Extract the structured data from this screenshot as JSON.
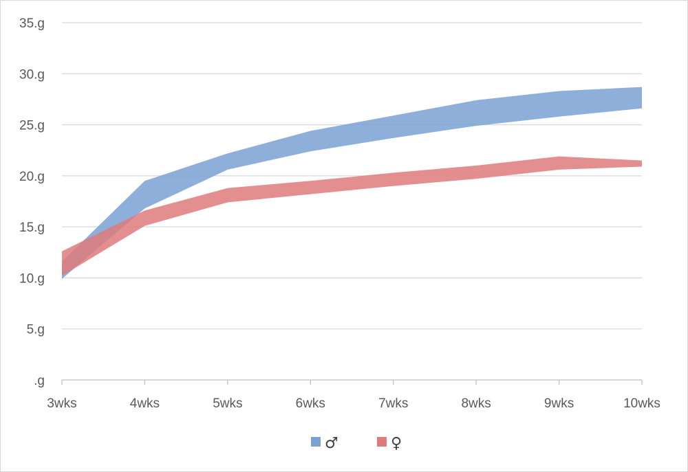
{
  "chart_data": {
    "type": "area",
    "title": "",
    "xlabel": "",
    "ylabel": "",
    "categories": [
      "3wks",
      "4wks",
      "5wks",
      "6wks",
      "7wks",
      "8wks",
      "9wks",
      "10wks"
    ],
    "y_ticks": [
      ".g",
      "5.g",
      "10.g",
      "15.g",
      "20.g",
      "25.g",
      "30.g",
      "35.g"
    ],
    "ylim": [
      0,
      35
    ],
    "grid": true,
    "legend": "bottom",
    "series": [
      {
        "name": "♂",
        "color": "#7aa1d2",
        "lower": [
          9.9,
          16.8,
          20.6,
          22.4,
          23.7,
          24.9,
          25.8,
          26.6
        ],
        "upper": [
          11.6,
          19.5,
          22.2,
          24.4,
          25.9,
          27.4,
          28.3,
          28.7
        ]
      },
      {
        "name": "♀",
        "color": "#df7b7b",
        "lower": [
          10.2,
          15.1,
          17.4,
          18.2,
          19.0,
          19.7,
          20.6,
          20.9
        ],
        "upper": [
          12.6,
          16.6,
          18.8,
          19.5,
          20.3,
          21.0,
          21.9,
          21.5
        ]
      }
    ]
  }
}
